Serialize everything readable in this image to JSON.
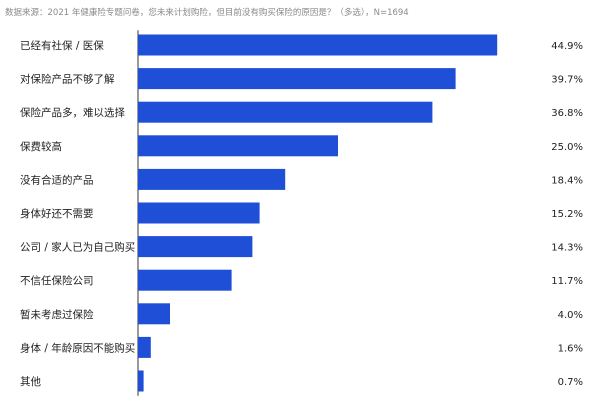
{
  "source_note": "数据来源：2021 年健康险专题问卷，您未来计划购险，但目前没有购买保险的原因是？（多选），N=1694",
  "colors": {
    "bar": "#1f4fd6",
    "axis": "#333333",
    "text": "#222222"
  },
  "chart_data": {
    "type": "bar",
    "orientation": "horizontal",
    "title": "",
    "xlabel": "",
    "ylabel": "",
    "xlim": [
      0,
      45
    ],
    "grid": false,
    "categories": [
      "已经有社保 / 医保",
      "对保险产品不够了解",
      "保险产品多，难以选择",
      "保费较高",
      "没有合适的产品",
      "身体好还不需要",
      "公司 / 家人已为自己购买",
      "不信任保险公司",
      "暂未考虑过保险",
      "身体 / 年龄原因不能购买",
      "其他"
    ],
    "values": [
      44.9,
      39.7,
      36.8,
      25.0,
      18.4,
      15.2,
      14.3,
      11.7,
      4.0,
      1.6,
      0.7
    ],
    "value_labels": [
      "44.9%",
      "39.7%",
      "36.8%",
      "25.0%",
      "18.4%",
      "15.2%",
      "14.3%",
      "11.7%",
      "4.0%",
      "1.6%",
      "0.7%"
    ]
  }
}
